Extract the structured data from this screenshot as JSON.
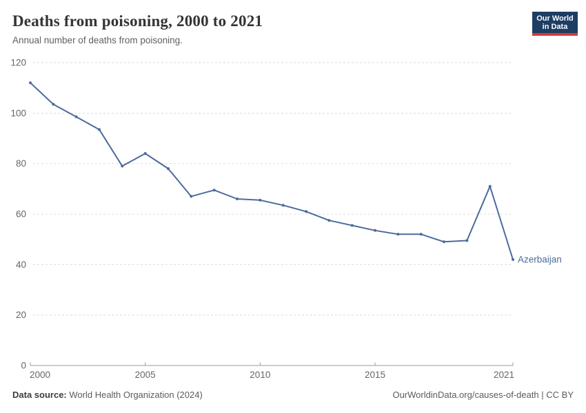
{
  "header": {
    "title": "Deaths from poisoning, 2000 to 2021",
    "subtitle": "Annual number of deaths from poisoning.",
    "logo": {
      "line1": "Our World",
      "line2": "in Data",
      "bg_color": "#1d3d63",
      "accent_color": "#d73a3a"
    }
  },
  "chart_data": {
    "type": "line",
    "title": "Deaths from poisoning, 2000 to 2021",
    "subtitle": "Annual number of deaths from poisoning.",
    "x": [
      2000,
      2001,
      2002,
      2003,
      2004,
      2005,
      2006,
      2007,
      2008,
      2009,
      2010,
      2011,
      2012,
      2013,
      2014,
      2015,
      2016,
      2017,
      2018,
      2019,
      2020,
      2021
    ],
    "series": [
      {
        "name": "Azerbaijan",
        "color": "#4C6A9C",
        "values": [
          112,
          103.5,
          98.5,
          93.5,
          79,
          84,
          78,
          67,
          69.5,
          66,
          65.5,
          63.5,
          61,
          57.5,
          55.5,
          53.5,
          52,
          52,
          49,
          49.5,
          71,
          42
        ]
      }
    ],
    "xlabel": "",
    "ylabel": "",
    "ylim": [
      0,
      120
    ],
    "yticks": [
      0,
      20,
      40,
      60,
      80,
      100,
      120
    ],
    "xticks": [
      2000,
      2005,
      2010,
      2015,
      2021
    ],
    "grid": "horizontal-dashed",
    "legend_position": "end-of-line-label",
    "colors": {
      "gridline": "#dddddd",
      "axis": "#999999",
      "tick_label": "#666666"
    }
  },
  "footer": {
    "source_label": "Data source:",
    "source_value": "World Health Organization (2024)",
    "credit": "OurWorldinData.org/causes-of-death | CC BY"
  }
}
